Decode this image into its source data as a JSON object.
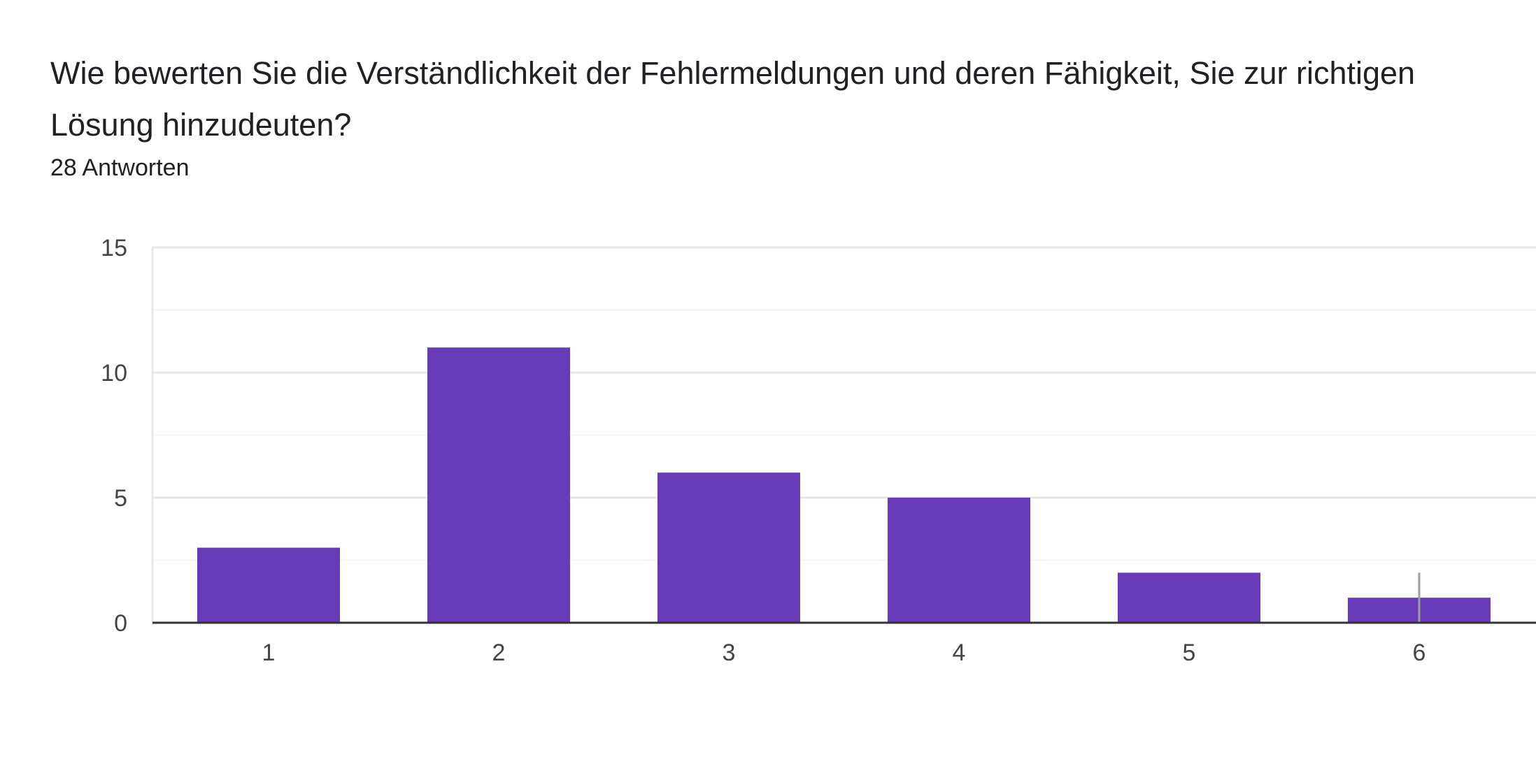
{
  "question": {
    "title": "Wie bewerten Sie die Verständlichkeit der Fehlermeldungen und deren Fähigkeit, Sie zur richtigen Lösung hinzudeuten?",
    "response_count": "28 Antworten"
  },
  "colors": {
    "bar": "#673ab7",
    "gridline": "#e8e8e8",
    "minor_gridline": "#f3f3f3",
    "axis": "#333333",
    "marker": "#9e9e9e"
  },
  "chart_data": {
    "type": "bar",
    "title": "Wie bewerten Sie die Verständlichkeit der Fehlermeldungen und deren Fähigkeit, Sie zur richtigen Lösung hinzudeuten?",
    "xlabel": "",
    "ylabel": "",
    "categories": [
      "1",
      "2",
      "3",
      "4",
      "5",
      "6"
    ],
    "values": [
      3,
      11,
      6,
      5,
      2,
      1
    ],
    "ylim": [
      0,
      15
    ],
    "yticks": [
      0,
      5,
      10,
      15
    ],
    "grid": true,
    "legend": "none"
  }
}
